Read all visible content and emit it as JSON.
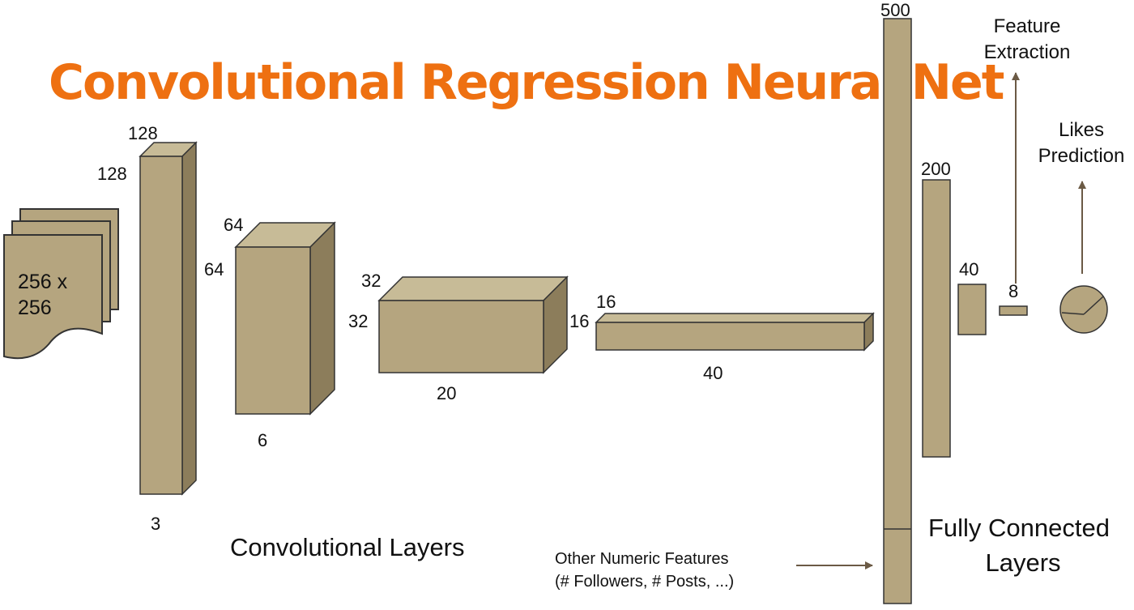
{
  "colors": {
    "title": "#ee7011",
    "block_front": "#b5a57f",
    "block_top": "#c7bb97",
    "block_side": "#8c7d5b",
    "outline": "#333333",
    "arrow": "#6b5a45"
  },
  "title": "Convolutional Regression Neural Net",
  "input": {
    "label_line1": "256 x",
    "label_line2": "256"
  },
  "conv_blocks": [
    {
      "height_label": "128",
      "depth_label": "128",
      "width_label": "3"
    },
    {
      "height_label": "64",
      "depth_label": "64",
      "width_label": "6"
    },
    {
      "height_label": "32",
      "depth_label": "32",
      "width_label": "20"
    },
    {
      "height_label": "16",
      "depth_label": "16",
      "width_label": "40"
    }
  ],
  "conv_section_label": "Convolutional Layers",
  "fc_layers": [
    {
      "label": "500"
    },
    {
      "label": "200"
    },
    {
      "label": "40"
    },
    {
      "label": "8"
    }
  ],
  "fc_section_label_line1": "Fully Connected",
  "fc_section_label_line2": "Layers",
  "other_features": {
    "line1": "Other Numeric Features",
    "line2": "(# Followers, # Posts, ...)"
  },
  "feature_extraction": {
    "line1": "Feature",
    "line2": "Extraction"
  },
  "likes_prediction": {
    "line1": "Likes",
    "line2": "Prediction"
  },
  "output_icon": "gauge-dial-icon"
}
